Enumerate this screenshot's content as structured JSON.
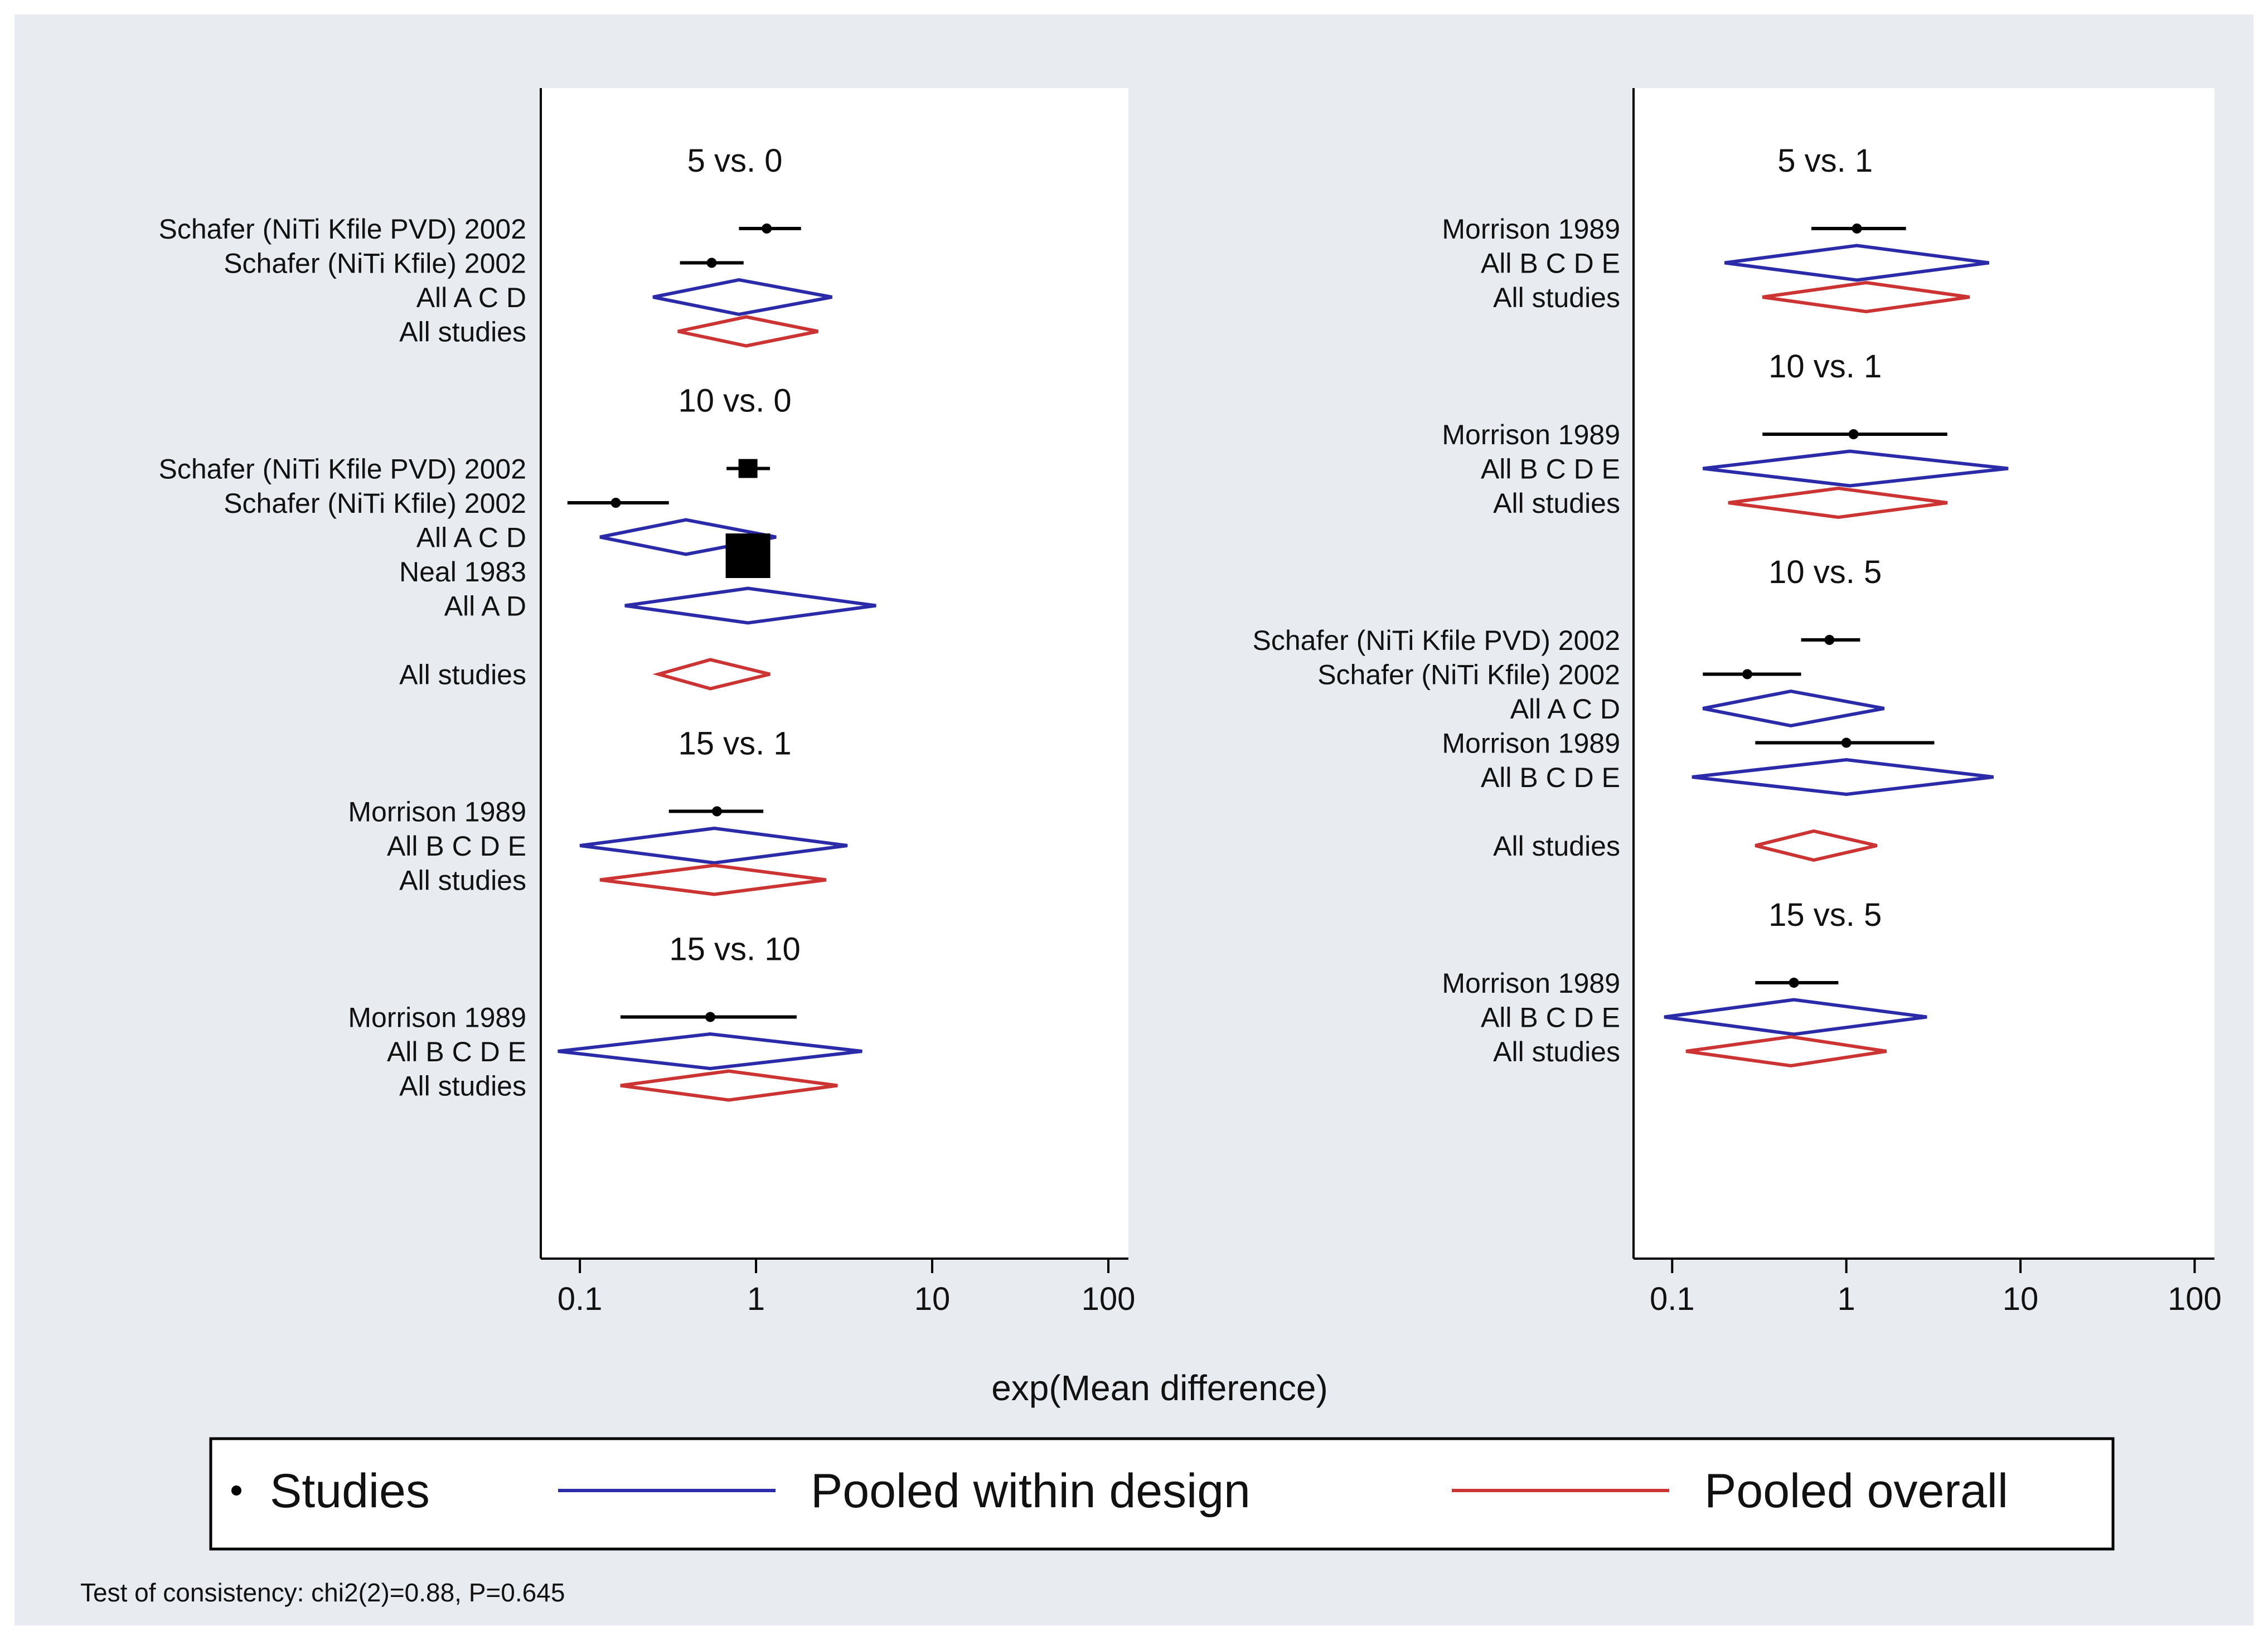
{
  "chart_data": {
    "type": "forest",
    "x_axis": {
      "label": "exp(Mean difference)",
      "scale": "log",
      "range": [
        0.06,
        130
      ],
      "ticks": [
        0.1,
        1,
        10,
        100
      ],
      "tick_labels": [
        "0.1",
        "1",
        "10",
        "100"
      ]
    },
    "legend": {
      "items": [
        {
          "marker": "dot",
          "label": "Studies",
          "color": "#000000"
        },
        {
          "marker": "line",
          "label": "Pooled within design",
          "color": "#2b2baa"
        },
        {
          "marker": "line",
          "label": "Pooled overall",
          "color": "#cc3333"
        }
      ]
    },
    "footnote": "Test of consistency: chi2(2)=0.88, P=0.645",
    "panels": [
      {
        "name": "left",
        "comparisons": [
          {
            "title": "5 vs. 0",
            "rows": [
              {
                "label": "Schafer (NiTi Kfile PVD)  2002",
                "kind": "study",
                "est": 1.15,
                "lo": 0.8,
                "hi": 1.8,
                "marker": "dot"
              },
              {
                "label": "Schafer (NiTi Kfile)  2002",
                "kind": "study",
                "est": 0.56,
                "lo": 0.37,
                "hi": 0.85,
                "marker": "dot"
              },
              {
                "label": "All A C D",
                "kind": "within",
                "est": 0.8,
                "lo": 0.26,
                "hi": 2.7
              },
              {
                "label": "All studies",
                "kind": "overall",
                "est": 0.88,
                "lo": 0.36,
                "hi": 2.25
              }
            ]
          },
          {
            "title": "10 vs. 0",
            "rows": [
              {
                "label": "Schafer (NiTi Kfile PVD)  2002",
                "kind": "study",
                "est": 0.9,
                "lo": 0.68,
                "hi": 1.2,
                "marker": "square-small"
              },
              {
                "label": "Schafer (NiTi Kfile)  2002",
                "kind": "study",
                "est": 0.16,
                "lo": 0.085,
                "hi": 0.32,
                "marker": "dot"
              },
              {
                "label": "All A C D",
                "kind": "within",
                "est": 0.4,
                "lo": 0.13,
                "hi": 1.3
              },
              {
                "label": "Neal 1983",
                "kind": "study",
                "est": 0.9,
                "lo": 0.75,
                "hi": 1.1,
                "marker": "square-large"
              },
              {
                "label": "All A D",
                "kind": "within",
                "est": 0.9,
                "lo": 0.18,
                "hi": 4.8
              },
              {
                "label": "",
                "kind": "spacer"
              },
              {
                "label": "All studies",
                "kind": "overall",
                "est": 0.55,
                "lo": 0.28,
                "hi": 1.2
              }
            ]
          },
          {
            "title": "15 vs. 1",
            "rows": [
              {
                "label": "Morrison 1989",
                "kind": "study",
                "est": 0.6,
                "lo": 0.32,
                "hi": 1.1,
                "marker": "dot"
              },
              {
                "label": "All B C D E",
                "kind": "within",
                "est": 0.58,
                "lo": 0.1,
                "hi": 3.3
              },
              {
                "label": "All studies",
                "kind": "overall",
                "est": 0.58,
                "lo": 0.13,
                "hi": 2.5
              }
            ]
          },
          {
            "title": "15 vs. 10",
            "rows": [
              {
                "label": "Morrison 1989",
                "kind": "study",
                "est": 0.55,
                "lo": 0.17,
                "hi": 1.7,
                "marker": "dot"
              },
              {
                "label": "All B C D E",
                "kind": "within",
                "est": 0.55,
                "lo": 0.075,
                "hi": 4.0
              },
              {
                "label": "All studies",
                "kind": "overall",
                "est": 0.7,
                "lo": 0.17,
                "hi": 2.9
              }
            ]
          }
        ]
      },
      {
        "name": "right",
        "comparisons": [
          {
            "title": "5 vs. 1",
            "rows": [
              {
                "label": "Morrison 1989",
                "kind": "study",
                "est": 1.15,
                "lo": 0.63,
                "hi": 2.2,
                "marker": "dot"
              },
              {
                "label": "All B C D E",
                "kind": "within",
                "est": 1.15,
                "lo": 0.2,
                "hi": 6.6
              },
              {
                "label": "All studies",
                "kind": "overall",
                "est": 1.3,
                "lo": 0.33,
                "hi": 5.1
              }
            ]
          },
          {
            "title": "10 vs. 1",
            "rows": [
              {
                "label": "Morrison 1989",
                "kind": "study",
                "est": 1.1,
                "lo": 0.33,
                "hi": 3.8,
                "marker": "dot"
              },
              {
                "label": "All B C D E",
                "kind": "within",
                "est": 1.05,
                "lo": 0.15,
                "hi": 8.5
              },
              {
                "label": "All studies",
                "kind": "overall",
                "est": 0.9,
                "lo": 0.21,
                "hi": 3.8
              }
            ]
          },
          {
            "title": "10 vs. 5",
            "rows": [
              {
                "label": "Schafer (NiTi Kfile PVD)  2002",
                "kind": "study",
                "est": 0.8,
                "lo": 0.55,
                "hi": 1.2,
                "marker": "dot"
              },
              {
                "label": "Schafer (NiTi Kfile)  2002",
                "kind": "study",
                "est": 0.27,
                "lo": 0.15,
                "hi": 0.55,
                "marker": "dot"
              },
              {
                "label": "All A C D",
                "kind": "within",
                "est": 0.48,
                "lo": 0.15,
                "hi": 1.65
              },
              {
                "label": "Morrison 1989",
                "kind": "study",
                "est": 1.0,
                "lo": 0.3,
                "hi": 3.2,
                "marker": "dot"
              },
              {
                "label": "All B C D E",
                "kind": "within",
                "est": 1.0,
                "lo": 0.13,
                "hi": 7.0
              },
              {
                "label": "",
                "kind": "spacer"
              },
              {
                "label": "All studies",
                "kind": "overall",
                "est": 0.65,
                "lo": 0.3,
                "hi": 1.5
              }
            ]
          },
          {
            "title": "15 vs. 5",
            "rows": [
              {
                "label": "Morrison 1989",
                "kind": "study",
                "est": 0.5,
                "lo": 0.3,
                "hi": 0.9,
                "marker": "dot"
              },
              {
                "label": "All B C D E",
                "kind": "within",
                "est": 0.5,
                "lo": 0.09,
                "hi": 2.9
              },
              {
                "label": "All studies",
                "kind": "overall",
                "est": 0.48,
                "lo": 0.12,
                "hi": 1.7
              }
            ]
          }
        ]
      }
    ]
  }
}
